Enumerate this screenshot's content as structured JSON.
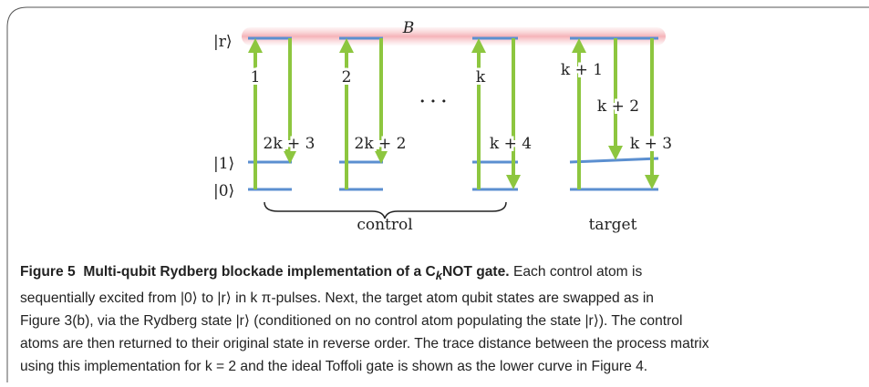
{
  "diagram": {
    "levels": [
      "|r⟩",
      "|1⟩",
      "|0⟩"
    ],
    "blockade": "B",
    "pulses": [
      "1",
      "2k + 3",
      "2",
      "2k + 2",
      "k",
      "k + 4",
      "k + 1",
      "k + 2",
      "k + 3"
    ],
    "ellipsis": "· · ·",
    "groups": [
      "control",
      "target"
    ]
  },
  "caption": {
    "label": "Figure 5",
    "title_parts": [
      "Multi-qubit Rydberg blockade implementation of a C",
      "k",
      "NOT gate."
    ],
    "lines": [
      "Each control atom is",
      "sequentially excited from |0⟩ to |r⟩ in k π-pulses. Next, the target atom qubit states are swapped as in",
      "Figure 3(b), via the Rydberg state |r⟩ (conditioned on no control atom populating the state |r⟩). The control",
      "atoms are then returned to their original state in reverse order. The trace distance between the process matrix",
      "using this implementation for k = 2 and the ideal Toffoli gate is shown as the lower curve in Figure 4."
    ]
  }
}
